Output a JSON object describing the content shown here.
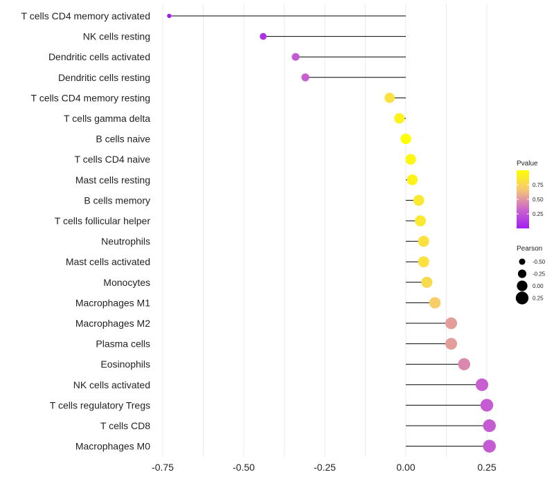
{
  "chart_data": {
    "type": "lollipop",
    "title": "",
    "xlabel": "",
    "ylabel": "",
    "xlim": [
      -0.76,
      0.29
    ],
    "x_ticks": [
      -0.75,
      -0.5,
      -0.25,
      0.0,
      0.25
    ],
    "x_tick_labels": [
      "-0.75",
      "-0.50",
      "-0.25",
      "0.00",
      "0.25"
    ],
    "grid": true,
    "baseline": 0.0,
    "categories": [
      "T cells CD4 memory activated",
      "NK cells resting",
      "Dendritic cells activated",
      "Dendritic cells resting",
      "T cells CD4 memory resting",
      "T cells gamma delta",
      "B cells naive",
      "T cells CD4 naive",
      "Mast cells resting",
      "B cells memory",
      "T cells follicular helper",
      "Neutrophils",
      "Mast cells activated",
      "Monocytes",
      "Macrophages M1",
      "Macrophages M2",
      "Plasma cells",
      "Eosinophils",
      "NK cells activated",
      "T cells regulatory  Tregs",
      "T cells CD8",
      "Macrophages M0"
    ],
    "pearson": [
      -0.73,
      -0.44,
      -0.34,
      -0.31,
      -0.05,
      -0.02,
      0.0,
      0.015,
      0.02,
      0.04,
      0.045,
      0.055,
      0.055,
      0.065,
      0.09,
      0.14,
      0.14,
      0.18,
      0.235,
      0.25,
      0.258,
      0.258
    ],
    "pvalue": [
      0.0,
      0.08,
      0.28,
      0.3,
      0.82,
      0.92,
      1.0,
      0.95,
      0.93,
      0.86,
      0.86,
      0.82,
      0.82,
      0.78,
      0.7,
      0.52,
      0.52,
      0.45,
      0.3,
      0.28,
      0.28,
      0.28
    ],
    "legend": {
      "pvalue": {
        "title": "Pvalue",
        "ticks": [
          0.25,
          0.5,
          0.75
        ],
        "tick_labels": [
          "0.25",
          "0.50",
          "0.75"
        ],
        "range": [
          0.0,
          1.0
        ],
        "colors": [
          "#a020f0",
          "#cc66cc",
          "#f5c875",
          "#ffff00"
        ]
      },
      "pearson": {
        "title": "Pearson",
        "values": [
          -0.5,
          -0.25,
          0.0,
          0.25
        ],
        "labels": [
          "-0.50",
          "-0.25",
          "0.00",
          "0.25"
        ]
      },
      "placement": "right"
    }
  }
}
